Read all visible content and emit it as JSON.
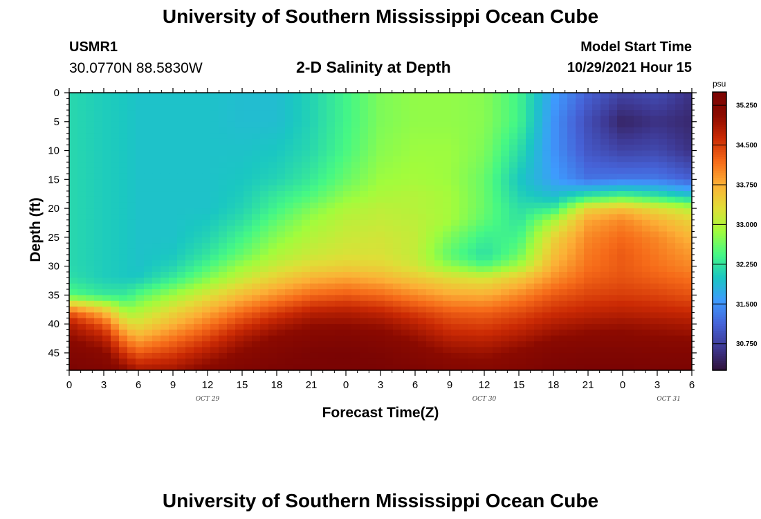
{
  "header": {
    "title": "University of Southern Mississippi Ocean Cube",
    "station_id": "USMR1",
    "coords": "30.0770N  88.5830W",
    "subtitle": "2-D Salinity at Depth",
    "start_label": "Model Start Time",
    "start_value": "10/29/2021 Hour 15"
  },
  "footer": {
    "title": "University of Southern Mississippi Ocean Cube"
  },
  "colors": {
    "scale": [
      "#30123b",
      "#3e3994",
      "#4663d8",
      "#3e9bfe",
      "#1ac7c2",
      "#46f884",
      "#a2fc3c",
      "#e1dd37",
      "#fcb036",
      "#f66b19",
      "#cb2a04",
      "#8b0a00",
      "#7a0403"
    ]
  },
  "chart_data": {
    "type": "heatmap",
    "title": "2-D Salinity at Depth",
    "xlabel": "Forecast Time(Z)",
    "ylabel": "Depth (ft)",
    "x_range": [
      0,
      54
    ],
    "x_units": "hours from 10/29/2021 00Z",
    "ylim": [
      0,
      48
    ],
    "y_ticks": [
      "0",
      "5",
      "10",
      "15",
      "20",
      "25",
      "30",
      "35",
      "40",
      "45"
    ],
    "x_ticks": [
      "0",
      "3",
      "6",
      "9",
      "12",
      "15",
      "18",
      "21",
      "0",
      "3",
      "6",
      "9",
      "12",
      "15",
      "18",
      "21",
      "0",
      "3",
      "6"
    ],
    "day_labels": [
      "OCT 29",
      "OCT 30",
      "OCT 31"
    ],
    "colorbar": {
      "unit": "psu",
      "min": 30.25,
      "max": 35.5,
      "labels": [
        "35.250",
        "34.500",
        "33.750",
        "33.000",
        "32.250",
        "31.500",
        "30.750"
      ]
    },
    "field_control_points": {
      "hours": [
        0,
        3,
        5,
        6,
        9,
        12,
        15,
        18,
        21,
        24,
        27,
        30,
        33,
        36,
        39,
        42,
        45,
        48,
        51,
        54
      ],
      "depths": [
        0,
        5,
        10,
        15,
        18,
        20,
        22,
        25,
        28,
        30,
        32,
        35,
        38,
        40,
        42,
        45,
        48
      ],
      "salinity": [
        [
          32.15,
          32.05,
          32.0,
          31.95,
          31.95,
          31.95,
          31.9,
          31.9,
          32.1,
          32.4,
          32.7,
          32.8,
          32.8,
          32.75,
          32.4,
          31.6,
          31.1,
          30.8,
          30.9,
          30.6
        ],
        [
          32.15,
          32.05,
          32.0,
          31.95,
          31.95,
          31.95,
          31.9,
          31.9,
          32.1,
          32.4,
          32.7,
          32.8,
          32.8,
          32.75,
          32.4,
          31.5,
          30.9,
          30.45,
          30.6,
          30.5
        ],
        [
          32.15,
          32.05,
          32.0,
          31.95,
          31.95,
          31.95,
          31.95,
          32.0,
          32.15,
          32.45,
          32.75,
          32.85,
          32.85,
          32.7,
          32.2,
          31.5,
          31.0,
          30.8,
          30.85,
          30.6
        ],
        [
          32.15,
          32.05,
          32.0,
          31.95,
          31.95,
          31.95,
          32.0,
          32.1,
          32.3,
          32.6,
          32.85,
          32.9,
          32.85,
          32.6,
          32.0,
          31.6,
          31.25,
          31.3,
          31.3,
          31.1
        ],
        [
          32.15,
          32.05,
          32.0,
          31.95,
          31.95,
          31.95,
          32.05,
          32.3,
          32.5,
          32.8,
          32.95,
          33.0,
          32.9,
          32.6,
          32.1,
          31.9,
          32.3,
          32.5,
          32.3,
          32.0
        ],
        [
          32.15,
          32.05,
          32.0,
          31.95,
          31.95,
          31.95,
          32.1,
          32.4,
          32.7,
          32.95,
          33.05,
          33.0,
          32.9,
          32.6,
          32.2,
          32.3,
          33.4,
          33.6,
          33.3,
          33.0
        ],
        [
          32.15,
          32.05,
          32.0,
          31.95,
          31.95,
          32.0,
          32.2,
          32.55,
          32.85,
          33.05,
          33.1,
          33.05,
          32.9,
          32.55,
          32.25,
          32.9,
          33.8,
          34.0,
          33.7,
          33.4
        ],
        [
          32.15,
          32.05,
          32.0,
          31.95,
          31.95,
          32.1,
          32.4,
          32.75,
          33.0,
          33.15,
          33.2,
          33.1,
          32.7,
          32.35,
          32.4,
          33.4,
          34.0,
          34.2,
          34.0,
          33.7
        ],
        [
          32.15,
          32.05,
          32.0,
          31.95,
          32.0,
          32.25,
          32.6,
          32.95,
          33.15,
          33.25,
          33.25,
          33.1,
          32.55,
          32.2,
          32.6,
          33.6,
          34.1,
          34.3,
          34.1,
          33.9
        ],
        [
          32.15,
          32.05,
          32.0,
          31.95,
          32.1,
          32.45,
          32.85,
          33.15,
          33.35,
          33.45,
          33.4,
          33.2,
          32.8,
          32.5,
          32.9,
          33.75,
          34.15,
          34.3,
          34.15,
          34.0
        ],
        [
          32.2,
          32.05,
          32.0,
          32.0,
          32.3,
          32.7,
          33.1,
          33.45,
          33.7,
          33.8,
          33.7,
          33.5,
          33.3,
          33.2,
          33.5,
          33.95,
          34.25,
          34.35,
          34.25,
          34.15
        ],
        [
          32.5,
          32.3,
          32.3,
          32.5,
          32.85,
          33.25,
          33.65,
          33.95,
          34.2,
          34.3,
          34.2,
          34.0,
          33.8,
          33.75,
          34.0,
          34.3,
          34.45,
          34.5,
          34.45,
          34.35
        ],
        [
          34.3,
          33.7,
          32.9,
          33.0,
          33.4,
          33.8,
          34.2,
          34.5,
          34.75,
          34.8,
          34.7,
          34.5,
          34.3,
          34.25,
          34.4,
          34.6,
          34.7,
          34.75,
          34.7,
          34.65
        ],
        [
          34.8,
          34.3,
          33.4,
          33.3,
          33.7,
          34.1,
          34.5,
          34.8,
          35.0,
          35.0,
          34.95,
          34.75,
          34.5,
          34.45,
          34.6,
          34.8,
          34.9,
          34.95,
          34.9,
          34.85
        ],
        [
          35.0,
          34.7,
          33.9,
          33.7,
          34.05,
          34.4,
          34.8,
          35.05,
          35.2,
          35.25,
          35.15,
          34.95,
          34.7,
          34.65,
          34.8,
          35.0,
          35.1,
          35.1,
          35.05,
          35.0
        ],
        [
          35.3,
          35.1,
          34.5,
          34.3,
          34.5,
          34.8,
          35.1,
          35.3,
          35.45,
          35.5,
          35.4,
          35.2,
          35.0,
          34.95,
          35.1,
          35.3,
          35.35,
          35.35,
          35.3,
          35.3
        ],
        [
          35.45,
          35.35,
          35.05,
          34.85,
          34.9,
          35.15,
          35.35,
          35.45,
          35.5,
          35.5,
          35.5,
          35.4,
          35.25,
          35.2,
          35.3,
          35.45,
          35.5,
          35.5,
          35.45,
          35.45
        ]
      ]
    }
  }
}
